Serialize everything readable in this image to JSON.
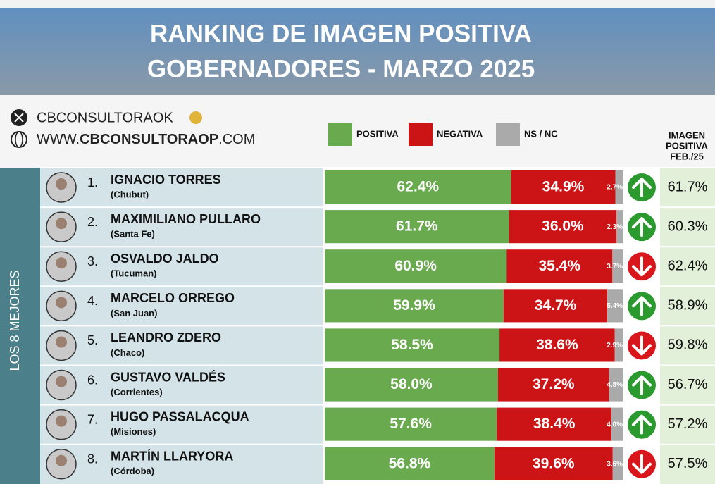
{
  "chart_data": {
    "type": "bar",
    "orientation": "horizontal",
    "stacked": true,
    "title": "RANKING DE IMAGEN POSITIVA",
    "subtitle": "GOBERNADORES - MARZO 2025",
    "handle": "CBCONSULTORAOK",
    "website_parts": [
      "WWW.",
      "CBCONSULTORAOP",
      ".COM"
    ],
    "group_label": "LOS 8 MEJORES",
    "xlim": [
      0,
      100
    ],
    "ranks": [
      "1.",
      "2.",
      "3.",
      "4.",
      "5.",
      "6.",
      "7.",
      "8."
    ],
    "categories": [
      "IGNACIO TORRES",
      "MAXIMILIANO PULLARO",
      "OSVALDO JALDO",
      "MARCELO ORREGO",
      "LEANDRO ZDERO",
      "GUSTAVO VALDÉS",
      "HUGO PASSALACQUA",
      "MARTÍN LLARYORA"
    ],
    "provinces": [
      "(Chubut)",
      "(Santa Fe)",
      "(Tucuman)",
      "(San Juan)",
      "(Chaco)",
      "(Corrientes)",
      "(Misiones)",
      "(Córdoba)"
    ],
    "series": [
      {
        "name": "POSITIVA",
        "color": "#6aaa4f",
        "values": [
          62.4,
          61.7,
          60.9,
          59.9,
          58.5,
          58.0,
          57.6,
          56.8
        ],
        "value_labels": [
          "62.4%",
          "61.7%",
          "60.9%",
          "59.9%",
          "58.5%",
          "58.0%",
          "57.6%",
          "56.8%"
        ]
      },
      {
        "name": "NEGATIVA",
        "color": "#cc1417",
        "values": [
          34.9,
          36.0,
          35.4,
          34.7,
          38.6,
          37.2,
          38.4,
          39.6
        ],
        "value_labels": [
          "34.9%",
          "36.0%",
          "35.4%",
          "34.7%",
          "38.6%",
          "37.2%",
          "38.4%",
          "39.6%"
        ]
      },
      {
        "name": "NS / NC",
        "color": "#aaaaaa",
        "values": [
          2.7,
          2.3,
          3.7,
          5.4,
          2.9,
          4.8,
          4.0,
          3.6
        ],
        "value_labels": [
          "2.7%",
          "2.3%",
          "3.7%",
          "5.4%",
          "2.9%",
          "4.8%",
          "4.0%",
          "3.6%"
        ]
      }
    ],
    "comparison": {
      "title_lines": [
        "IMAGEN",
        "POSITIVA",
        "FEB./25"
      ],
      "values": [
        61.7,
        60.3,
        62.4,
        58.9,
        59.8,
        56.7,
        57.2,
        57.5
      ],
      "value_labels": [
        "61.7%",
        "60.3%",
        "62.4%",
        "58.9%",
        "59.8%",
        "56.7%",
        "57.2%",
        "57.5%"
      ]
    }
  }
}
